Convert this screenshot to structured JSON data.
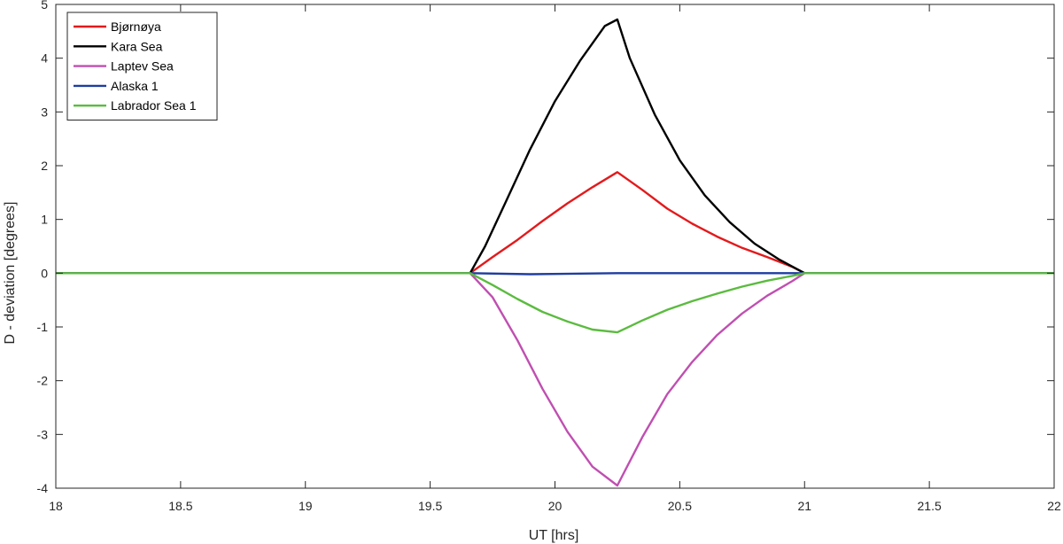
{
  "chart_data": {
    "type": "line",
    "title": "",
    "xlabel": "UT [hrs]",
    "ylabel": "D - deviation [degrees]",
    "xlim": [
      18,
      22
    ],
    "ylim": [
      -4,
      5
    ],
    "xticks": [
      18,
      18.5,
      19,
      19.5,
      20,
      20.5,
      21,
      21.5,
      22
    ],
    "xtick_labels": [
      "18",
      "18.5",
      "19",
      "19.5",
      "20",
      "20.5",
      "21",
      "21.5",
      "22"
    ],
    "yticks": [
      -4,
      -3,
      -2,
      -1,
      0,
      1,
      2,
      3,
      4,
      5
    ],
    "ytick_labels": [
      "-4",
      "-3",
      "-2",
      "-1",
      "0",
      "1",
      "2",
      "3",
      "4",
      "5"
    ],
    "grid": false,
    "legend_position": "top-left",
    "series": [
      {
        "name": "Bjørnøya",
        "color": "#e31a1c",
        "x": [
          18,
          19.66,
          19.75,
          19.85,
          19.95,
          20.05,
          20.15,
          20.25,
          20.35,
          20.45,
          20.55,
          20.65,
          20.75,
          20.85,
          20.95,
          21,
          22
        ],
        "y": [
          0,
          0,
          0.3,
          0.62,
          0.97,
          1.3,
          1.6,
          1.88,
          1.55,
          1.2,
          0.92,
          0.68,
          0.47,
          0.3,
          0.12,
          0,
          0
        ]
      },
      {
        "name": "Kara Sea",
        "color": "#000000",
        "x": [
          18,
          19.66,
          19.72,
          19.8,
          19.9,
          20.0,
          20.1,
          20.2,
          20.25,
          20.3,
          20.4,
          20.5,
          20.6,
          20.7,
          20.8,
          20.9,
          21,
          22
        ],
        "y": [
          0,
          0,
          0.5,
          1.3,
          2.3,
          3.2,
          3.95,
          4.6,
          4.72,
          4.0,
          2.95,
          2.1,
          1.45,
          0.95,
          0.55,
          0.25,
          0,
          0
        ]
      },
      {
        "name": "Laptev Sea",
        "color": "#c04fb1",
        "x": [
          18,
          19.66,
          19.75,
          19.85,
          19.95,
          20.05,
          20.15,
          20.25,
          20.35,
          20.45,
          20.55,
          20.65,
          20.75,
          20.85,
          20.95,
          21,
          22
        ],
        "y": [
          0,
          0,
          -0.45,
          -1.25,
          -2.15,
          -2.95,
          -3.6,
          -3.95,
          -3.05,
          -2.25,
          -1.65,
          -1.15,
          -0.75,
          -0.42,
          -0.15,
          0,
          0
        ]
      },
      {
        "name": "Alaska 1",
        "color": "#1f3da0",
        "x": [
          18,
          19.66,
          19.9,
          20.25,
          20.6,
          21,
          22
        ],
        "y": [
          0,
          0,
          -0.02,
          0.0,
          0.0,
          0,
          0
        ]
      },
      {
        "name": "Labrador Sea 1",
        "color": "#5bbb3f",
        "x": [
          18,
          19.66,
          19.75,
          19.85,
          19.95,
          20.05,
          20.15,
          20.25,
          20.35,
          20.45,
          20.55,
          20.65,
          20.75,
          20.85,
          20.95,
          21,
          22
        ],
        "y": [
          0,
          0,
          -0.22,
          -0.48,
          -0.72,
          -0.9,
          -1.05,
          -1.1,
          -0.88,
          -0.68,
          -0.52,
          -0.38,
          -0.25,
          -0.14,
          -0.05,
          0,
          0
        ]
      }
    ]
  }
}
